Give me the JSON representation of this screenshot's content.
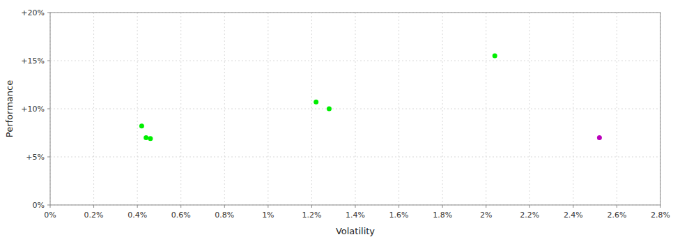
{
  "chart_data": {
    "type": "scatter",
    "xlabel": "Volatility",
    "ylabel": "Performance",
    "xlim": [
      0.0,
      0.028
    ],
    "ylim": [
      0.0,
      0.2
    ],
    "xticks": [
      {
        "value": 0.0,
        "label": "0%"
      },
      {
        "value": 0.002,
        "label": "0.2%"
      },
      {
        "value": 0.004,
        "label": "0.4%"
      },
      {
        "value": 0.006,
        "label": "0.6%"
      },
      {
        "value": 0.008,
        "label": "0.8%"
      },
      {
        "value": 0.01,
        "label": "1%"
      },
      {
        "value": 0.012,
        "label": "1.2%"
      },
      {
        "value": 0.014,
        "label": "1.4%"
      },
      {
        "value": 0.016,
        "label": "1.6%"
      },
      {
        "value": 0.018,
        "label": "1.8%"
      },
      {
        "value": 0.02,
        "label": "2%"
      },
      {
        "value": 0.022,
        "label": "2.2%"
      },
      {
        "value": 0.024,
        "label": "2.4%"
      },
      {
        "value": 0.026,
        "label": "2.6%"
      },
      {
        "value": 0.028,
        "label": "2.8%"
      }
    ],
    "yticks": [
      {
        "value": 0.0,
        "label": "0%"
      },
      {
        "value": 0.05,
        "label": "+5%"
      },
      {
        "value": 0.1,
        "label": "+10%"
      },
      {
        "value": 0.15,
        "label": "+15%"
      },
      {
        "value": 0.2,
        "label": "+20%"
      }
    ],
    "grid": true,
    "series": [
      {
        "color": "#00ee00",
        "x": [
          0.0042,
          0.0044,
          0.0046,
          0.0122,
          0.0128,
          0.0204
        ],
        "values": [
          0.082,
          0.07,
          0.069,
          0.107,
          0.1,
          0.155
        ]
      },
      {
        "color": "#bb00bb",
        "x": [
          0.0252
        ],
        "values": [
          0.07
        ]
      }
    ]
  }
}
